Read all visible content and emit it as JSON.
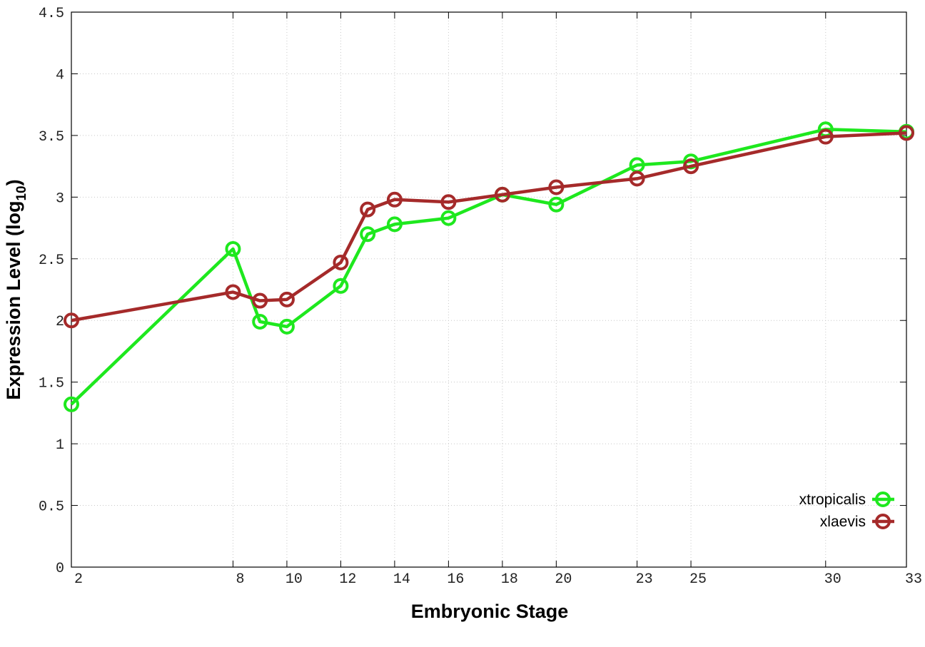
{
  "chart_data": {
    "type": "line",
    "x_label": "Embryonic Stage",
    "y_label": {
      "text": "Expression Level (log",
      "subscript": "10",
      "suffix": ")"
    },
    "x": [
      2,
      8,
      9,
      10,
      12,
      13,
      14,
      16,
      18,
      20,
      23,
      25,
      30,
      33
    ],
    "series": [
      {
        "name": "xtropicalis",
        "color": "#1ee81e",
        "values": [
          1.32,
          2.58,
          1.99,
          1.95,
          2.28,
          2.7,
          2.78,
          2.83,
          3.02,
          2.94,
          3.26,
          3.29,
          3.55,
          3.53
        ]
      },
      {
        "name": "xlaevis",
        "color": "#a52a2a",
        "values": [
          2.0,
          2.23,
          2.16,
          2.17,
          2.47,
          2.9,
          2.98,
          2.96,
          3.02,
          3.08,
          3.15,
          3.25,
          3.49,
          3.52
        ]
      }
    ],
    "xlim": [
      2,
      33
    ],
    "xticks": [
      2,
      8,
      10,
      12,
      14,
      16,
      18,
      20,
      23,
      25,
      30,
      33
    ],
    "ylim": [
      0,
      4.5
    ],
    "yticks": [
      0,
      0.5,
      1,
      1.5,
      2,
      2.5,
      3,
      3.5,
      4,
      4.5
    ],
    "grid": true,
    "legend": "lower right"
  }
}
